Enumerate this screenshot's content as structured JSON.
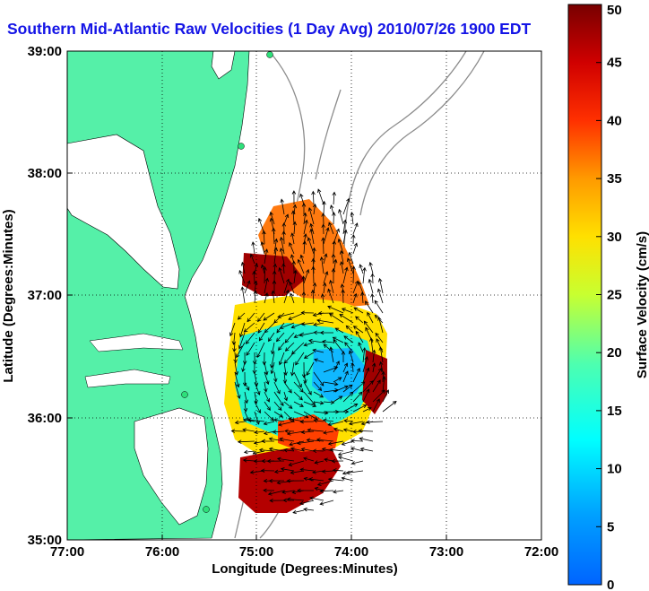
{
  "title": "Southern Mid-Atlantic Raw Velocities (1 Day Avg) 2010/07/26 1900 EDT",
  "map": {
    "x_label": "Longitude (Degrees:Minutes)",
    "y_label": "Latitude (Degrees:Minutes)",
    "x_ticks": [
      "77:00",
      "76:00",
      "75:00",
      "74:00",
      "73:00",
      "72:00"
    ],
    "y_ticks": [
      "39:00",
      "38:00",
      "37:00",
      "36:00",
      "35:00"
    ],
    "land_color": "#55f0a8",
    "contour_color": "#8c8c8c",
    "arrow_color": "#000000",
    "grid": "dotted"
  },
  "colorbar": {
    "label": "Surface Velocity (cm/s)",
    "ticks": [
      "50",
      "45",
      "40",
      "35",
      "30",
      "25",
      "20",
      "15",
      "10",
      "5",
      "0"
    ],
    "range": [
      0,
      50
    ],
    "colormap": "jet"
  }
}
